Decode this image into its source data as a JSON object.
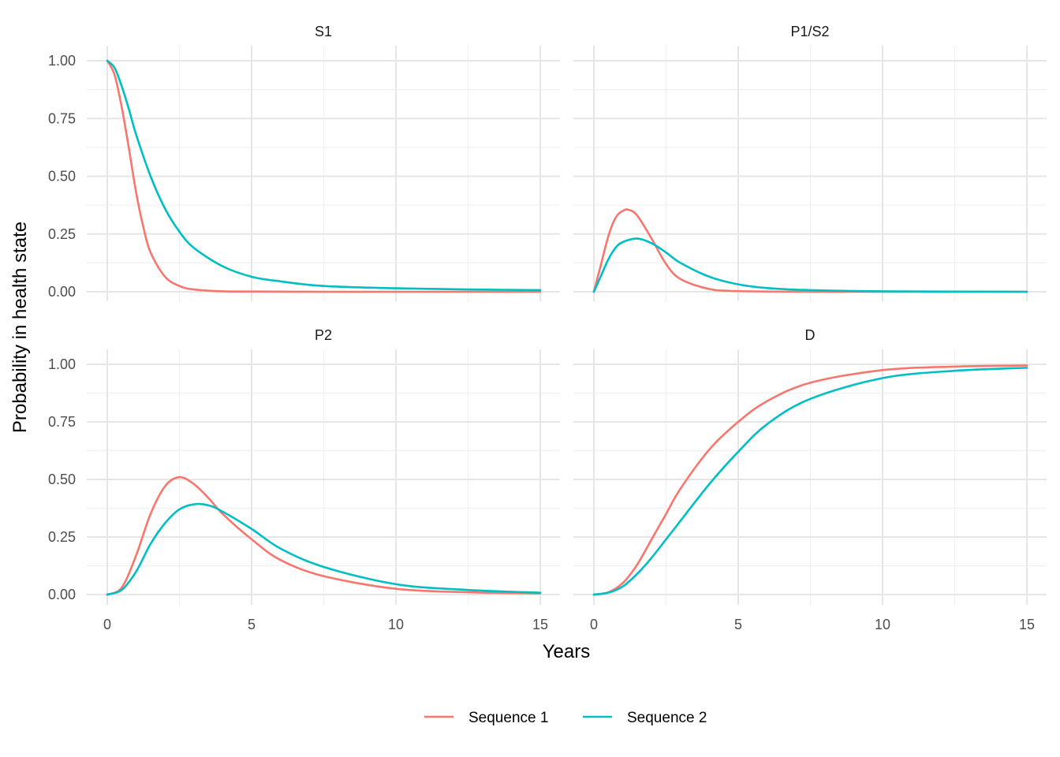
{
  "chart_data": {
    "type": "line",
    "layout": "facet-2x2",
    "xlabel": "Years",
    "ylabel": "Probability in health state",
    "xlim": [
      0,
      15
    ],
    "ylim": [
      0,
      1
    ],
    "x_ticks": [
      "0",
      "5",
      "10",
      "15"
    ],
    "y_ticks": [
      "0.00",
      "0.25",
      "0.50",
      "0.75",
      "1.00"
    ],
    "grid": true,
    "legend_position": "bottom",
    "series_names": [
      "Sequence 1",
      "Sequence 2"
    ],
    "series_colors": [
      "#F8766D",
      "#00BFC4"
    ],
    "panels": [
      {
        "title": "S1",
        "series": [
          {
            "name": "Sequence 1",
            "x": [
              0,
              0.25,
              0.5,
              0.75,
              1,
              1.25,
              1.5,
              2,
              2.5,
              3,
              4,
              5,
              7.5,
              10,
              15
            ],
            "values": [
              1,
              0.94,
              0.8,
              0.62,
              0.43,
              0.28,
              0.17,
              0.065,
              0.025,
              0.01,
              0.002,
              0.001,
              0,
              0,
              0
            ]
          },
          {
            "name": "Sequence 2",
            "x": [
              0,
              0.25,
              0.5,
              0.75,
              1,
              1.5,
              2,
              2.5,
              3,
              4,
              5,
              6,
              7.5,
              10,
              12.5,
              15
            ],
            "values": [
              1,
              0.97,
              0.89,
              0.79,
              0.68,
              0.5,
              0.36,
              0.26,
              0.19,
              0.11,
              0.065,
              0.045,
              0.025,
              0.015,
              0.01,
              0.007
            ]
          }
        ]
      },
      {
        "title": "P1/S2",
        "series": [
          {
            "name": "Sequence 1",
            "x": [
              0,
              0.25,
              0.5,
              0.75,
              1,
              1.2,
              1.5,
              2,
              2.5,
              3,
              4,
              5,
              7.5,
              10,
              15
            ],
            "values": [
              0,
              0.12,
              0.24,
              0.32,
              0.35,
              0.355,
              0.33,
              0.23,
              0.12,
              0.055,
              0.012,
              0.003,
              0,
              0,
              0
            ]
          },
          {
            "name": "Sequence 2",
            "x": [
              0,
              0.25,
              0.5,
              0.75,
              1,
              1.5,
              2,
              2.5,
              3,
              4,
              5,
              6,
              7.5,
              10,
              15
            ],
            "values": [
              0,
              0.07,
              0.14,
              0.19,
              0.215,
              0.23,
              0.21,
              0.17,
              0.125,
              0.065,
              0.032,
              0.016,
              0.007,
              0.002,
              0
            ]
          }
        ]
      },
      {
        "title": "P2",
        "series": [
          {
            "name": "Sequence 1",
            "x": [
              0,
              0.5,
              1,
              1.5,
              2,
              2.5,
              3,
              3.5,
              4,
              5,
              6,
              7.5,
              10,
              12.5,
              15
            ],
            "values": [
              0,
              0.03,
              0.17,
              0.35,
              0.47,
              0.51,
              0.48,
              0.42,
              0.35,
              0.24,
              0.15,
              0.08,
              0.025,
              0.01,
              0.005
            ]
          },
          {
            "name": "Sequence 2",
            "x": [
              0,
              0.5,
              1,
              1.5,
              2,
              2.5,
              3,
              3.5,
              4,
              5,
              6,
              7.5,
              10,
              12.5,
              15
            ],
            "values": [
              0,
              0.02,
              0.1,
              0.22,
              0.31,
              0.37,
              0.392,
              0.388,
              0.36,
              0.285,
              0.2,
              0.12,
              0.045,
              0.02,
              0.008
            ]
          }
        ]
      },
      {
        "title": "D",
        "series": [
          {
            "name": "Sequence 1",
            "x": [
              0,
              0.5,
              1,
              1.5,
              2,
              2.5,
              3,
              4,
              5,
              6,
              7.5,
              10,
              12.5,
              15
            ],
            "values": [
              0,
              0.01,
              0.05,
              0.13,
              0.24,
              0.35,
              0.46,
              0.63,
              0.75,
              0.84,
              0.92,
              0.975,
              0.99,
              0.995
            ]
          },
          {
            "name": "Sequence 2",
            "x": [
              0,
              0.5,
              1,
              1.5,
              2,
              2.5,
              3,
              4,
              5,
              6,
              7.5,
              10,
              12.5,
              15
            ],
            "values": [
              0,
              0.008,
              0.035,
              0.09,
              0.16,
              0.24,
              0.32,
              0.48,
              0.62,
              0.74,
              0.85,
              0.94,
              0.972,
              0.985
            ]
          }
        ]
      }
    ]
  }
}
